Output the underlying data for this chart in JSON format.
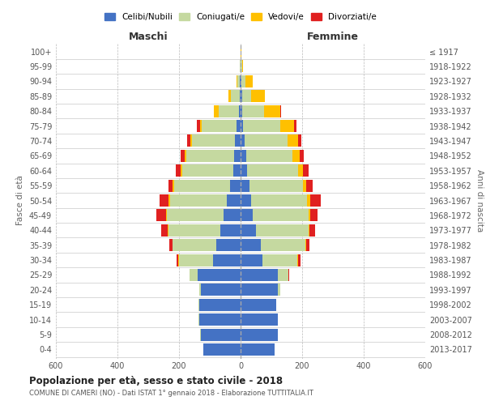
{
  "age_groups": [
    "0-4",
    "5-9",
    "10-14",
    "15-19",
    "20-24",
    "25-29",
    "30-34",
    "35-39",
    "40-44",
    "45-49",
    "50-54",
    "55-59",
    "60-64",
    "65-69",
    "70-74",
    "75-79",
    "80-84",
    "85-89",
    "90-94",
    "95-99",
    "100+"
  ],
  "birth_years": [
    "2013-2017",
    "2008-2012",
    "2003-2007",
    "1998-2002",
    "1993-1997",
    "1988-1992",
    "1983-1987",
    "1978-1982",
    "1973-1977",
    "1968-1972",
    "1963-1967",
    "1958-1962",
    "1953-1957",
    "1948-1952",
    "1943-1947",
    "1938-1942",
    "1933-1937",
    "1928-1932",
    "1923-1927",
    "1918-1922",
    "≤ 1917"
  ],
  "males": {
    "celibi": [
      120,
      130,
      135,
      135,
      130,
      140,
      90,
      80,
      65,
      55,
      45,
      35,
      25,
      22,
      18,
      12,
      6,
      3,
      2,
      1,
      1
    ],
    "coniugati": [
      0,
      1,
      1,
      2,
      5,
      25,
      110,
      140,
      170,
      185,
      185,
      180,
      165,
      155,
      140,
      115,
      65,
      28,
      8,
      2,
      0
    ],
    "vedovi": [
      0,
      0,
      0,
      0,
      0,
      0,
      2,
      2,
      2,
      3,
      3,
      5,
      5,
      5,
      5,
      5,
      15,
      8,
      2,
      0,
      0
    ],
    "divorziati": [
      0,
      0,
      0,
      0,
      0,
      2,
      5,
      10,
      20,
      30,
      30,
      15,
      15,
      12,
      10,
      10,
      2,
      0,
      0,
      0,
      0
    ]
  },
  "females": {
    "nubili": [
      110,
      120,
      120,
      115,
      120,
      120,
      70,
      65,
      50,
      40,
      35,
      28,
      22,
      18,
      12,
      8,
      5,
      4,
      3,
      1,
      1
    ],
    "coniugate": [
      0,
      1,
      1,
      2,
      8,
      35,
      115,
      145,
      170,
      180,
      180,
      175,
      165,
      150,
      140,
      120,
      70,
      30,
      12,
      3,
      0
    ],
    "vedove": [
      0,
      0,
      0,
      0,
      0,
      1,
      2,
      2,
      3,
      5,
      10,
      10,
      15,
      25,
      35,
      45,
      55,
      45,
      25,
      5,
      1
    ],
    "divorziate": [
      0,
      0,
      0,
      0,
      1,
      3,
      8,
      12,
      20,
      25,
      35,
      20,
      18,
      12,
      10,
      8,
      2,
      0,
      0,
      0,
      0
    ]
  },
  "color_celibi": "#4472c4",
  "color_coniugati": "#c5d9a0",
  "color_vedovi": "#ffc000",
  "color_divorziati": "#e02020",
  "title": "Popolazione per età, sesso e stato civile - 2018",
  "subtitle": "COMUNE DI CAMERI (NO) - Dati ISTAT 1° gennaio 2018 - Elaborazione TUTTITALIA.IT",
  "ylabel_left": "Fasce di età",
  "ylabel_right": "Anni di nascita",
  "xlabel_left": "Maschi",
  "xlabel_right": "Femmine",
  "xlim": 600,
  "background_color": "#ffffff",
  "grid_color": "#bbbbbb"
}
